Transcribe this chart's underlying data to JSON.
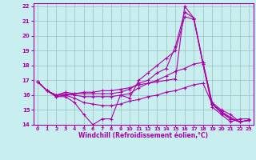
{
  "xlabel": "Windchill (Refroidissement éolien,°C)",
  "background_color": "#c8eef0",
  "grid_color": "#9bbfbf",
  "line_color": "#aa00aa",
  "xlim": [
    -0.5,
    23.5
  ],
  "ylim": [
    14,
    22.2
  ],
  "xticks": [
    0,
    1,
    2,
    3,
    4,
    5,
    6,
    7,
    8,
    9,
    10,
    11,
    12,
    13,
    14,
    15,
    16,
    17,
    18,
    19,
    20,
    21,
    22,
    23
  ],
  "yticks": [
    14,
    15,
    16,
    17,
    18,
    19,
    20,
    21,
    22
  ],
  "lines": [
    [
      16.9,
      16.3,
      15.9,
      15.9,
      15.5,
      14.7,
      14.0,
      14.4,
      14.4,
      16.0,
      15.8,
      17.0,
      17.5,
      18.0,
      18.5,
      19.0,
      21.3,
      21.1,
      18.1,
      15.2,
      14.7,
      14.2,
      14.4,
      14.4
    ],
    [
      16.9,
      16.3,
      16.0,
      16.2,
      16.1,
      16.1,
      16.1,
      16.1,
      16.1,
      16.2,
      16.4,
      16.8,
      17.0,
      17.5,
      17.8,
      19.3,
      21.6,
      21.2,
      18.2,
      15.5,
      15.0,
      14.7,
      14.2,
      14.3
    ],
    [
      16.9,
      16.3,
      16.0,
      16.1,
      16.0,
      15.9,
      15.9,
      15.9,
      15.9,
      16.0,
      16.1,
      16.5,
      16.8,
      17.0,
      17.3,
      17.6,
      17.8,
      18.1,
      18.2,
      15.4,
      14.9,
      14.4,
      14.2,
      14.3
    ],
    [
      16.9,
      16.3,
      16.0,
      16.0,
      15.8,
      15.5,
      15.4,
      15.3,
      15.3,
      15.4,
      15.6,
      15.7,
      15.9,
      16.0,
      16.2,
      16.3,
      16.5,
      16.7,
      16.8,
      15.4,
      14.9,
      14.5,
      14.2,
      14.3
    ],
    [
      16.9,
      16.3,
      15.9,
      16.0,
      16.1,
      16.2,
      16.2,
      16.3,
      16.3,
      16.4,
      16.5,
      16.7,
      16.8,
      16.9,
      17.0,
      17.1,
      22.0,
      21.2,
      18.1,
      15.4,
      14.8,
      14.4,
      14.2,
      14.3
    ]
  ]
}
